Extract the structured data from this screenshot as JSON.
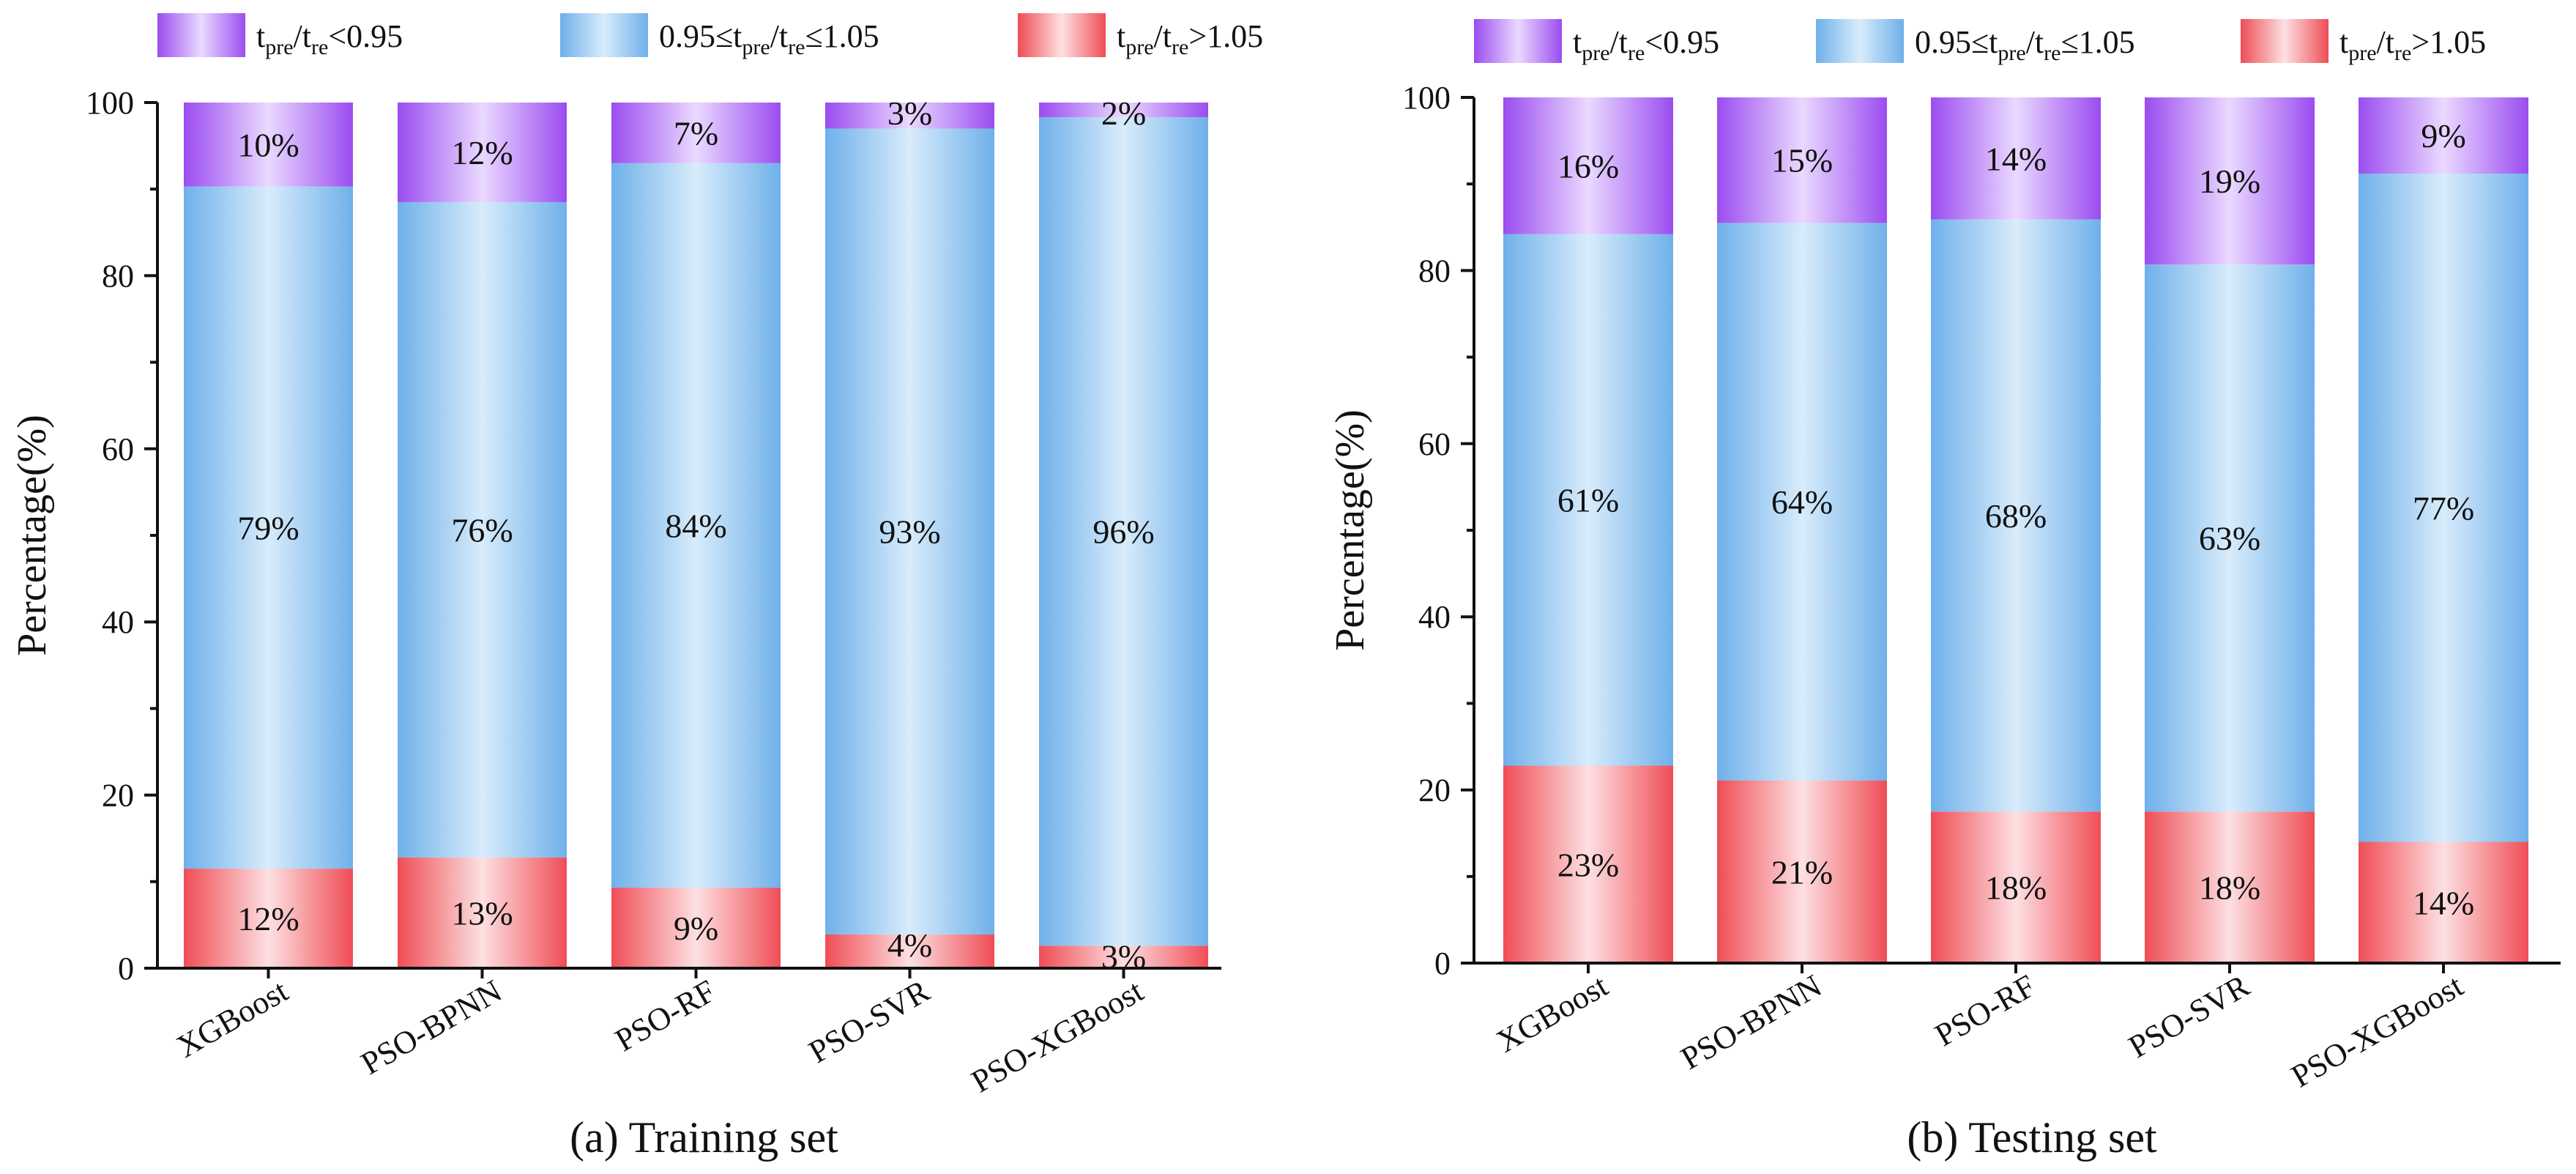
{
  "colors": {
    "low": {
      "edge": "#9b4cf0",
      "mid": "#ead9ff"
    },
    "mid": {
      "edge": "#6fb0ea",
      "mid": "#d8ecfb"
    },
    "high": {
      "edge": "#ef4d55",
      "mid": "#fde0e2"
    }
  },
  "legend": [
    {
      "key": "low",
      "parts": [
        [
          "t",
          ""
        ],
        [
          "pre",
          "sub"
        ],
        [
          "/t",
          ""
        ],
        [
          "re",
          "sub"
        ],
        [
          "<0.95",
          ""
        ]
      ]
    },
    {
      "key": "mid",
      "parts": [
        [
          "0.95≤t",
          ""
        ],
        [
          "pre",
          "sub"
        ],
        [
          "/t",
          ""
        ],
        [
          "re",
          "sub"
        ],
        [
          "≤1.05",
          ""
        ]
      ]
    },
    {
      "key": "high",
      "parts": [
        [
          "t",
          ""
        ],
        [
          "pre",
          "sub"
        ],
        [
          "/t",
          ""
        ],
        [
          "re",
          "sub"
        ],
        [
          ">1.05",
          ""
        ]
      ]
    }
  ],
  "chart_data": [
    {
      "type": "bar",
      "stacked": true,
      "title": "(a) Training set",
      "ylabel": "Percentage(%)",
      "xlabel": "",
      "ylim": [
        0,
        100
      ],
      "yticks": [
        0,
        20,
        40,
        60,
        80,
        100
      ],
      "categories": [
        "XGBoost",
        "PSO-BPNN",
        "PSO-RF",
        "PSO-SVR",
        "PSO-XGBoost"
      ],
      "series": [
        {
          "key": "high",
          "values": [
            11.5,
            12.8,
            9.3,
            3.9,
            2.6
          ],
          "labels": [
            "12%",
            "13%",
            "9%",
            "4%",
            "3%"
          ]
        },
        {
          "key": "mid",
          "values": [
            78.8,
            75.7,
            83.7,
            93.1,
            95.7
          ],
          "labels": [
            "79%",
            "76%",
            "84%",
            "93%",
            "96%"
          ]
        },
        {
          "key": "low",
          "values": [
            9.7,
            11.5,
            7.0,
            3.0,
            1.7
          ],
          "labels": [
            "10%",
            "12%",
            "7%",
            "3%",
            "2%"
          ]
        }
      ]
    },
    {
      "type": "bar",
      "stacked": true,
      "title": "(b) Testing set",
      "ylabel": "Percentage(%)",
      "xlabel": "",
      "ylim": [
        0,
        100
      ],
      "yticks": [
        0,
        20,
        40,
        60,
        80,
        100
      ],
      "categories": [
        "XGBoost",
        "PSO-BPNN",
        "PSO-RF",
        "PSO-SVR",
        "PSO-XGBoost"
      ],
      "series": [
        {
          "key": "high",
          "values": [
            22.8,
            21.1,
            17.5,
            17.5,
            14.0
          ],
          "labels": [
            "23%",
            "21%",
            "18%",
            "18%",
            "14%"
          ]
        },
        {
          "key": "mid",
          "values": [
            61.4,
            64.4,
            68.4,
            63.2,
            77.2
          ],
          "labels": [
            "61%",
            "64%",
            "68%",
            "63%",
            "77%"
          ]
        },
        {
          "key": "low",
          "values": [
            15.8,
            14.5,
            14.1,
            19.3,
            8.8
          ],
          "labels": [
            "16%",
            "15%",
            "14%",
            "19%",
            "9%"
          ]
        }
      ]
    }
  ]
}
